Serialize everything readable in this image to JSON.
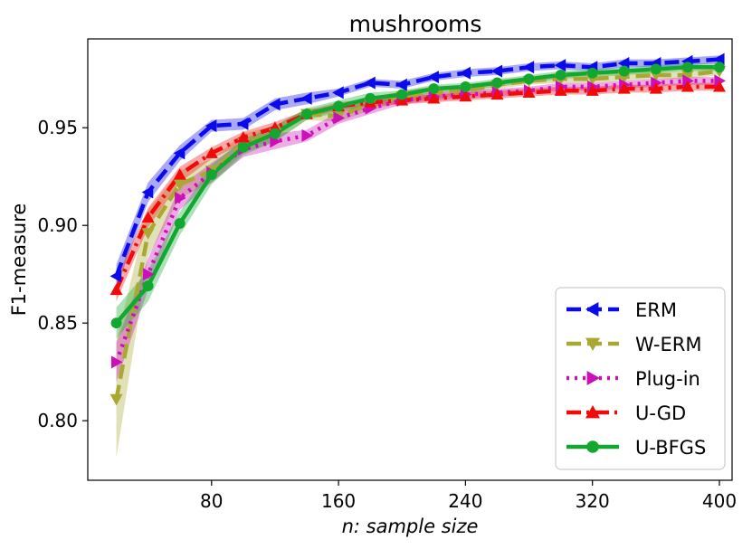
{
  "chart_data": {
    "type": "line",
    "title": "mushrooms",
    "xlabel": "n: sample size",
    "ylabel": "F1-measure",
    "xlim": [
      2,
      408
    ],
    "ylim": [
      0.7695,
      0.9955
    ],
    "xticks": [
      80,
      160,
      240,
      320,
      400
    ],
    "yticks": [
      0.8,
      0.85,
      0.9,
      0.95
    ],
    "x": [
      20,
      40,
      60,
      80,
      100,
      120,
      140,
      160,
      180,
      200,
      220,
      240,
      260,
      280,
      300,
      320,
      340,
      360,
      380,
      400
    ],
    "legend_position": "lower right",
    "series": [
      {
        "name": "ERM",
        "color": "#0a0aea",
        "line_style": "dashed",
        "marker": "triangle-left",
        "values": [
          0.874,
          0.917,
          0.937,
          0.951,
          0.952,
          0.962,
          0.965,
          0.968,
          0.973,
          0.972,
          0.976,
          0.978,
          0.979,
          0.981,
          0.982,
          0.981,
          0.983,
          0.983,
          0.984,
          0.985
        ],
        "band": [
          0.006,
          0.005,
          0.004,
          0.003,
          0.003,
          0.003,
          0.003,
          0.002,
          0.002,
          0.002,
          0.002,
          0.002,
          0.002,
          0.002,
          0.002,
          0.002,
          0.002,
          0.002,
          0.002,
          0.002
        ]
      },
      {
        "name": "W-ERM",
        "color": "#a8a832",
        "line_style": "dashed",
        "marker": "triangle-down",
        "values": [
          0.811,
          0.896,
          0.921,
          0.928,
          0.942,
          0.947,
          0.957,
          0.956,
          0.962,
          0.966,
          0.968,
          0.969,
          0.972,
          0.974,
          0.975,
          0.975,
          0.976,
          0.977,
          0.977,
          0.979
        ],
        "band": [
          0.03,
          0.012,
          0.007,
          0.006,
          0.005,
          0.004,
          0.003,
          0.003,
          0.003,
          0.003,
          0.003,
          0.002,
          0.002,
          0.002,
          0.002,
          0.002,
          0.002,
          0.002,
          0.002,
          0.002
        ]
      },
      {
        "name": "Plug-in",
        "color": "#cc10b8",
        "line_style": "dotted",
        "marker": "triangle-right",
        "values": [
          0.83,
          0.875,
          0.914,
          0.927,
          0.939,
          0.943,
          0.946,
          0.955,
          0.96,
          0.964,
          0.966,
          0.967,
          0.968,
          0.969,
          0.971,
          0.971,
          0.972,
          0.973,
          0.974,
          0.974
        ],
        "band": [
          0.01,
          0.008,
          0.006,
          0.005,
          0.004,
          0.004,
          0.003,
          0.003,
          0.003,
          0.002,
          0.002,
          0.002,
          0.002,
          0.002,
          0.002,
          0.002,
          0.002,
          0.002,
          0.002,
          0.002
        ]
      },
      {
        "name": "U-GD",
        "color": "#f00a0a",
        "line_style": "dashdot",
        "marker": "triangle-up",
        "values": [
          0.867,
          0.904,
          0.926,
          0.937,
          0.945,
          0.95,
          0.957,
          0.961,
          0.963,
          0.964,
          0.965,
          0.966,
          0.967,
          0.968,
          0.969,
          0.969,
          0.97,
          0.97,
          0.971,
          0.971
        ],
        "band": [
          0.006,
          0.005,
          0.004,
          0.003,
          0.003,
          0.003,
          0.002,
          0.002,
          0.002,
          0.002,
          0.002,
          0.002,
          0.002,
          0.002,
          0.002,
          0.002,
          0.002,
          0.002,
          0.002,
          0.002
        ]
      },
      {
        "name": "U-BFGS",
        "color": "#12a830",
        "line_style": "solid",
        "marker": "circle",
        "values": [
          0.85,
          0.869,
          0.901,
          0.926,
          0.94,
          0.947,
          0.957,
          0.961,
          0.965,
          0.967,
          0.97,
          0.971,
          0.973,
          0.975,
          0.977,
          0.978,
          0.979,
          0.98,
          0.981,
          0.981
        ],
        "band": [
          0.008,
          0.008,
          0.006,
          0.005,
          0.004,
          0.004,
          0.003,
          0.003,
          0.003,
          0.002,
          0.002,
          0.002,
          0.002,
          0.002,
          0.002,
          0.002,
          0.002,
          0.002,
          0.002,
          0.002
        ]
      }
    ]
  }
}
